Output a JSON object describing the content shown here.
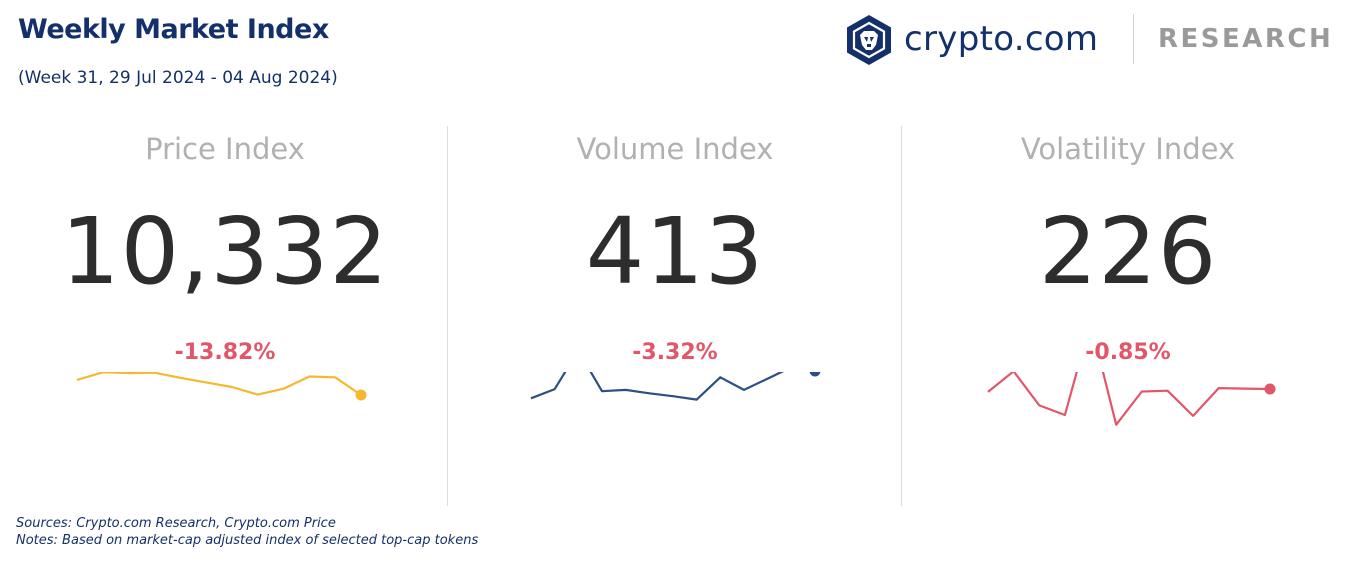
{
  "header": {
    "title": "Weekly Market Index",
    "subtitle": "(Week 31, 29 Jul 2024 - 04 Aug 2024)"
  },
  "logo": {
    "icon": "crypto-com-lion-shield-icon",
    "brand": "crypto.com",
    "label": "RESEARCH",
    "brand_color": "#14306b"
  },
  "chart_data": [
    {
      "type": "line",
      "title": "Price Index",
      "value": "10,332",
      "change": "-13.82%",
      "color": "#f5b82e",
      "values": [
        0.17,
        0.35,
        0.33,
        0.34,
        0.22,
        0.11,
        0.0,
        -0.18,
        -0.04,
        0.25,
        0.23,
        -0.19
      ]
    },
    {
      "type": "line",
      "title": "Volume Index",
      "value": "413",
      "change": "-3.32%",
      "color": "#2d4e86",
      "values": [
        -0.27,
        -0.05,
        0.87,
        -0.1,
        -0.07,
        -0.15,
        -0.22,
        -0.3,
        0.23,
        -0.07,
        0.2,
        0.47,
        0.38
      ]
    },
    {
      "type": "line",
      "title": "Volatility Index",
      "value": "226",
      "change": "-0.85%",
      "color": "#e2566a",
      "values": [
        0.24,
        0.73,
        -0.08,
        -0.31,
        1.9,
        -0.54,
        0.25,
        0.27,
        -0.33,
        0.33,
        0.32,
        0.31
      ]
    }
  ],
  "footer": {
    "sources": "Sources: Crypto.com Research,  Crypto.com Price",
    "notes": "Notes: Based on market-cap adjusted index of selected top-cap tokens"
  }
}
